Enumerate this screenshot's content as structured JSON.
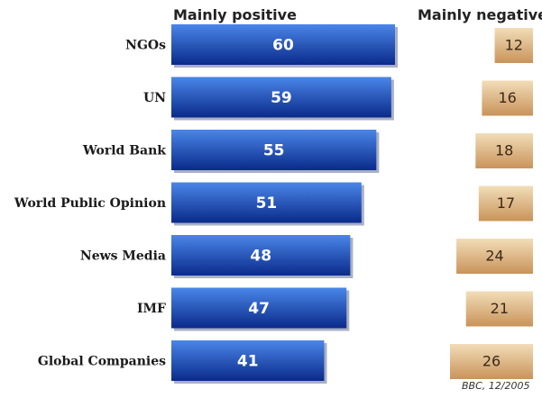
{
  "chart_data": {
    "type": "bar",
    "categories": [
      "NGOs",
      "UN",
      "World Bank",
      "World Public Opinion",
      "News Media",
      "IMF",
      "Global Companies"
    ],
    "series": [
      {
        "name": "Mainly positive",
        "values": [
          60,
          59,
          55,
          51,
          48,
          47,
          41
        ]
      },
      {
        "name": "Mainly negative",
        "values": [
          12,
          16,
          18,
          17,
          24,
          21,
          26
        ]
      }
    ],
    "title": "",
    "xlabel": "",
    "ylabel": "",
    "source": "BBC, 12/2005"
  },
  "colors": {
    "positive_top": "#4a86e8",
    "positive_bottom": "#0a2a8a",
    "negative_top": "#f2ddb8",
    "negative_bottom": "#c9935a"
  }
}
